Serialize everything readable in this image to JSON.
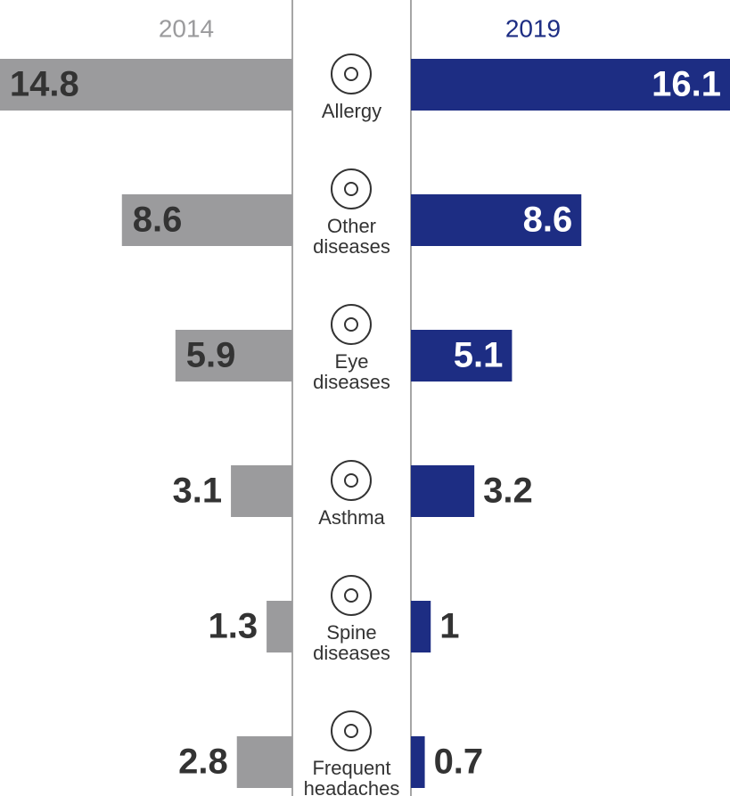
{
  "chart_data": {
    "type": "butterfly",
    "categories": [
      "Allergy",
      "Other diseases",
      "Eye diseases",
      "Asthma",
      "Spine diseases",
      "Frequent headaches"
    ],
    "series": [
      {
        "name": "2014",
        "color": "#9b9b9d",
        "values": [
          14.8,
          8.6,
          5.9,
          3.1,
          1.3,
          2.8
        ]
      },
      {
        "name": "2019",
        "color": "#1d2d83",
        "values": [
          16.1,
          8.6,
          5.1,
          3.2,
          1.0,
          0.7
        ]
      }
    ]
  }
}
